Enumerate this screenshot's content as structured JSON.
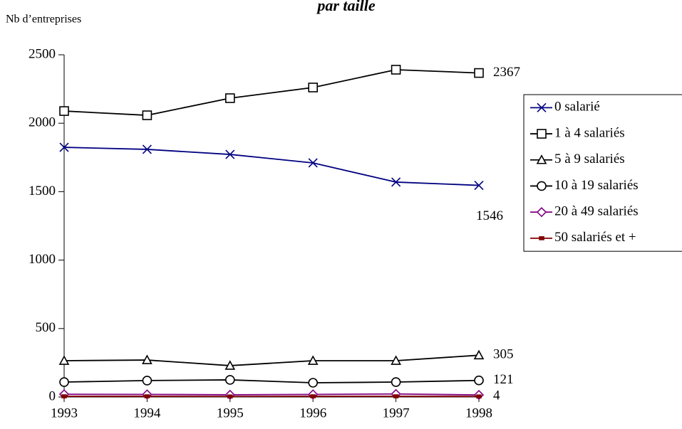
{
  "chart_data": {
    "type": "line",
    "title": "par taille",
    "y_label": "Nb d’entreprises",
    "x": [
      1993,
      1994,
      1995,
      1996,
      1997,
      1998
    ],
    "xlim": [
      1993,
      1998
    ],
    "xticks": [
      1993,
      1994,
      1995,
      1996,
      1997,
      1998
    ],
    "ylim": [
      0,
      2500
    ],
    "yticks": [
      0,
      500,
      1000,
      1500,
      2000,
      2500
    ],
    "grid": false,
    "legend": "right",
    "series": [
      {
        "name": "0 salarié",
        "color": "#000080",
        "marker": "cross",
        "values": [
          1824,
          1809,
          1772,
          1710,
          1570,
          1546
        ],
        "end_label": "below"
      },
      {
        "name": "1 à 4 salariés",
        "color": "#000000",
        "marker": "square",
        "values": [
          2089,
          2058,
          2183,
          2261,
          2391,
          2367
        ],
        "end_label": "right"
      },
      {
        "name": "5 à 9 salariés",
        "color": "#000000",
        "marker": "triangle",
        "values": [
          265,
          270,
          229,
          265,
          265,
          305
        ],
        "end_label": "right"
      },
      {
        "name": "10 à 19 salariés",
        "color": "#000000",
        "marker": "circle",
        "values": [
          109,
          120,
          125,
          104,
          109,
          121
        ],
        "end_label": "right"
      },
      {
        "name": "20 à 49 salariés",
        "color": "#800080",
        "marker": "diamond",
        "values": [
          20,
          19,
          16,
          19,
          22,
          15
        ]
      },
      {
        "name": "50 salariés et +",
        "color": "#800000",
        "marker": "dash",
        "values": [
          5,
          5,
          4,
          5,
          5,
          4
        ],
        "end_label": "right"
      }
    ]
  }
}
